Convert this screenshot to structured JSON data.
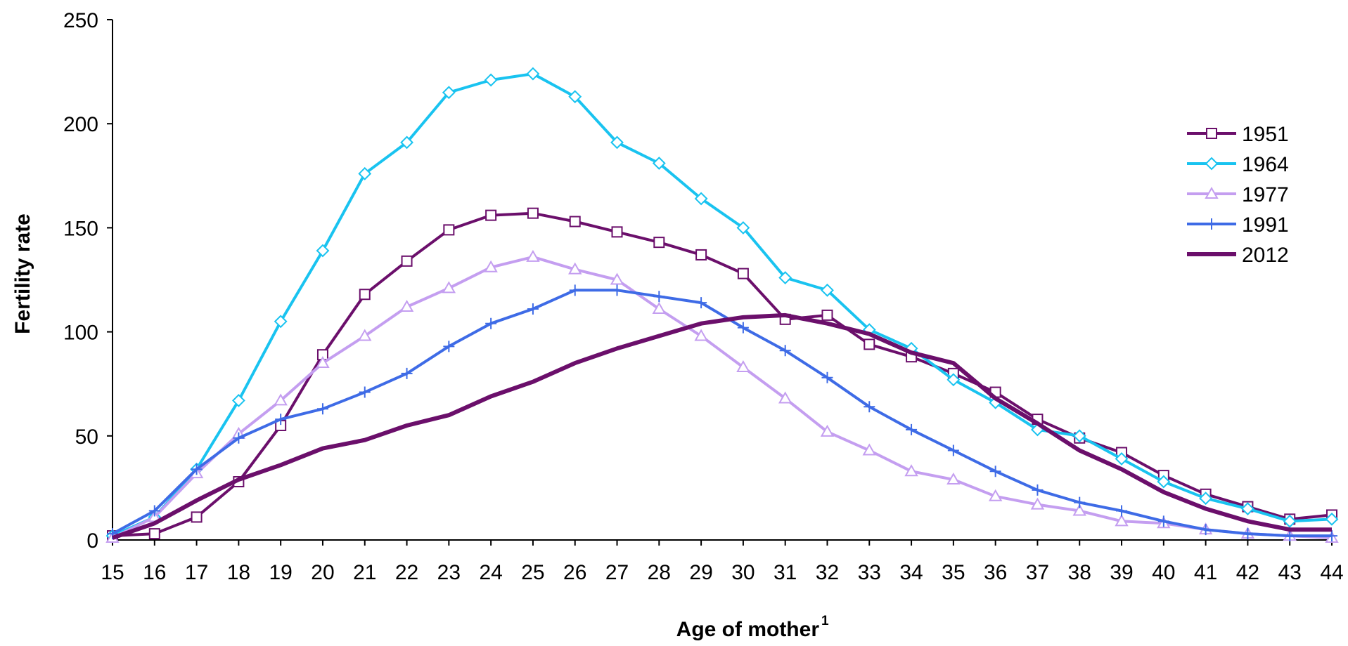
{
  "chart_data": {
    "type": "line",
    "xlabel": "Age of mother",
    "xlabel_superscript": "1",
    "ylabel": "Fertility rate",
    "xlim": [
      15,
      44
    ],
    "ylim": [
      0,
      250
    ],
    "x": [
      15,
      16,
      17,
      18,
      19,
      20,
      21,
      22,
      23,
      24,
      25,
      26,
      27,
      28,
      29,
      30,
      31,
      32,
      33,
      34,
      35,
      36,
      37,
      38,
      39,
      40,
      41,
      42,
      43,
      44
    ],
    "x_tick_labels": [
      "15",
      "16",
      "17",
      "18",
      "19",
      "20",
      "21",
      "22",
      "23",
      "24",
      "25",
      "26",
      "27",
      "28",
      "29",
      "30",
      "31",
      "32",
      "33",
      "34",
      "35",
      "36",
      "37",
      "38",
      "39",
      "40",
      "41",
      "42",
      "43",
      "44"
    ],
    "y_tick_labels": [
      "0",
      "50",
      "100",
      "150",
      "200",
      "250"
    ],
    "y_ticks": [
      0,
      50,
      100,
      150,
      200,
      250
    ],
    "grid": false,
    "legend_position": "right",
    "series": [
      {
        "name": "1951",
        "color": "#6b0f6b",
        "marker": "square",
        "values": [
          2,
          3,
          11,
          28,
          55,
          89,
          118,
          134,
          149,
          156,
          157,
          153,
          148,
          143,
          137,
          128,
          106,
          108,
          94,
          88,
          80,
          71,
          58,
          49,
          42,
          31,
          22,
          16,
          10,
          12
        ]
      },
      {
        "name": "1964",
        "color": "#19c3f0",
        "marker": "diamond",
        "values": [
          2,
          11,
          34,
          67,
          105,
          139,
          176,
          191,
          215,
          221,
          224,
          213,
          191,
          181,
          164,
          150,
          126,
          120,
          101,
          92,
          77,
          66,
          53,
          50,
          39,
          28,
          20,
          15,
          9,
          10
        ]
      },
      {
        "name": "1977",
        "color": "#c49ef0",
        "marker": "triangle",
        "values": [
          1,
          11,
          32,
          51,
          67,
          85,
          98,
          112,
          121,
          131,
          136,
          130,
          125,
          111,
          98,
          83,
          68,
          52,
          43,
          33,
          29,
          21,
          17,
          14,
          9,
          8,
          5,
          3,
          2,
          1
        ]
      },
      {
        "name": "1991",
        "color": "#3e6be6",
        "marker": "plus",
        "values": [
          3,
          14,
          34,
          49,
          58,
          63,
          71,
          80,
          93,
          104,
          111,
          120,
          120,
          117,
          114,
          102,
          91,
          78,
          64,
          53,
          43,
          33,
          24,
          18,
          14,
          9,
          5,
          3,
          2,
          2
        ]
      },
      {
        "name": "2012",
        "color": "#6b0f6b",
        "marker": "none",
        "thick": true,
        "values": [
          1,
          8,
          19,
          29,
          36,
          44,
          48,
          55,
          60,
          69,
          76,
          85,
          92,
          98,
          104,
          107,
          108,
          104,
          99,
          90,
          85,
          68,
          56,
          43,
          34,
          23,
          15,
          9,
          5,
          5
        ]
      }
    ]
  }
}
